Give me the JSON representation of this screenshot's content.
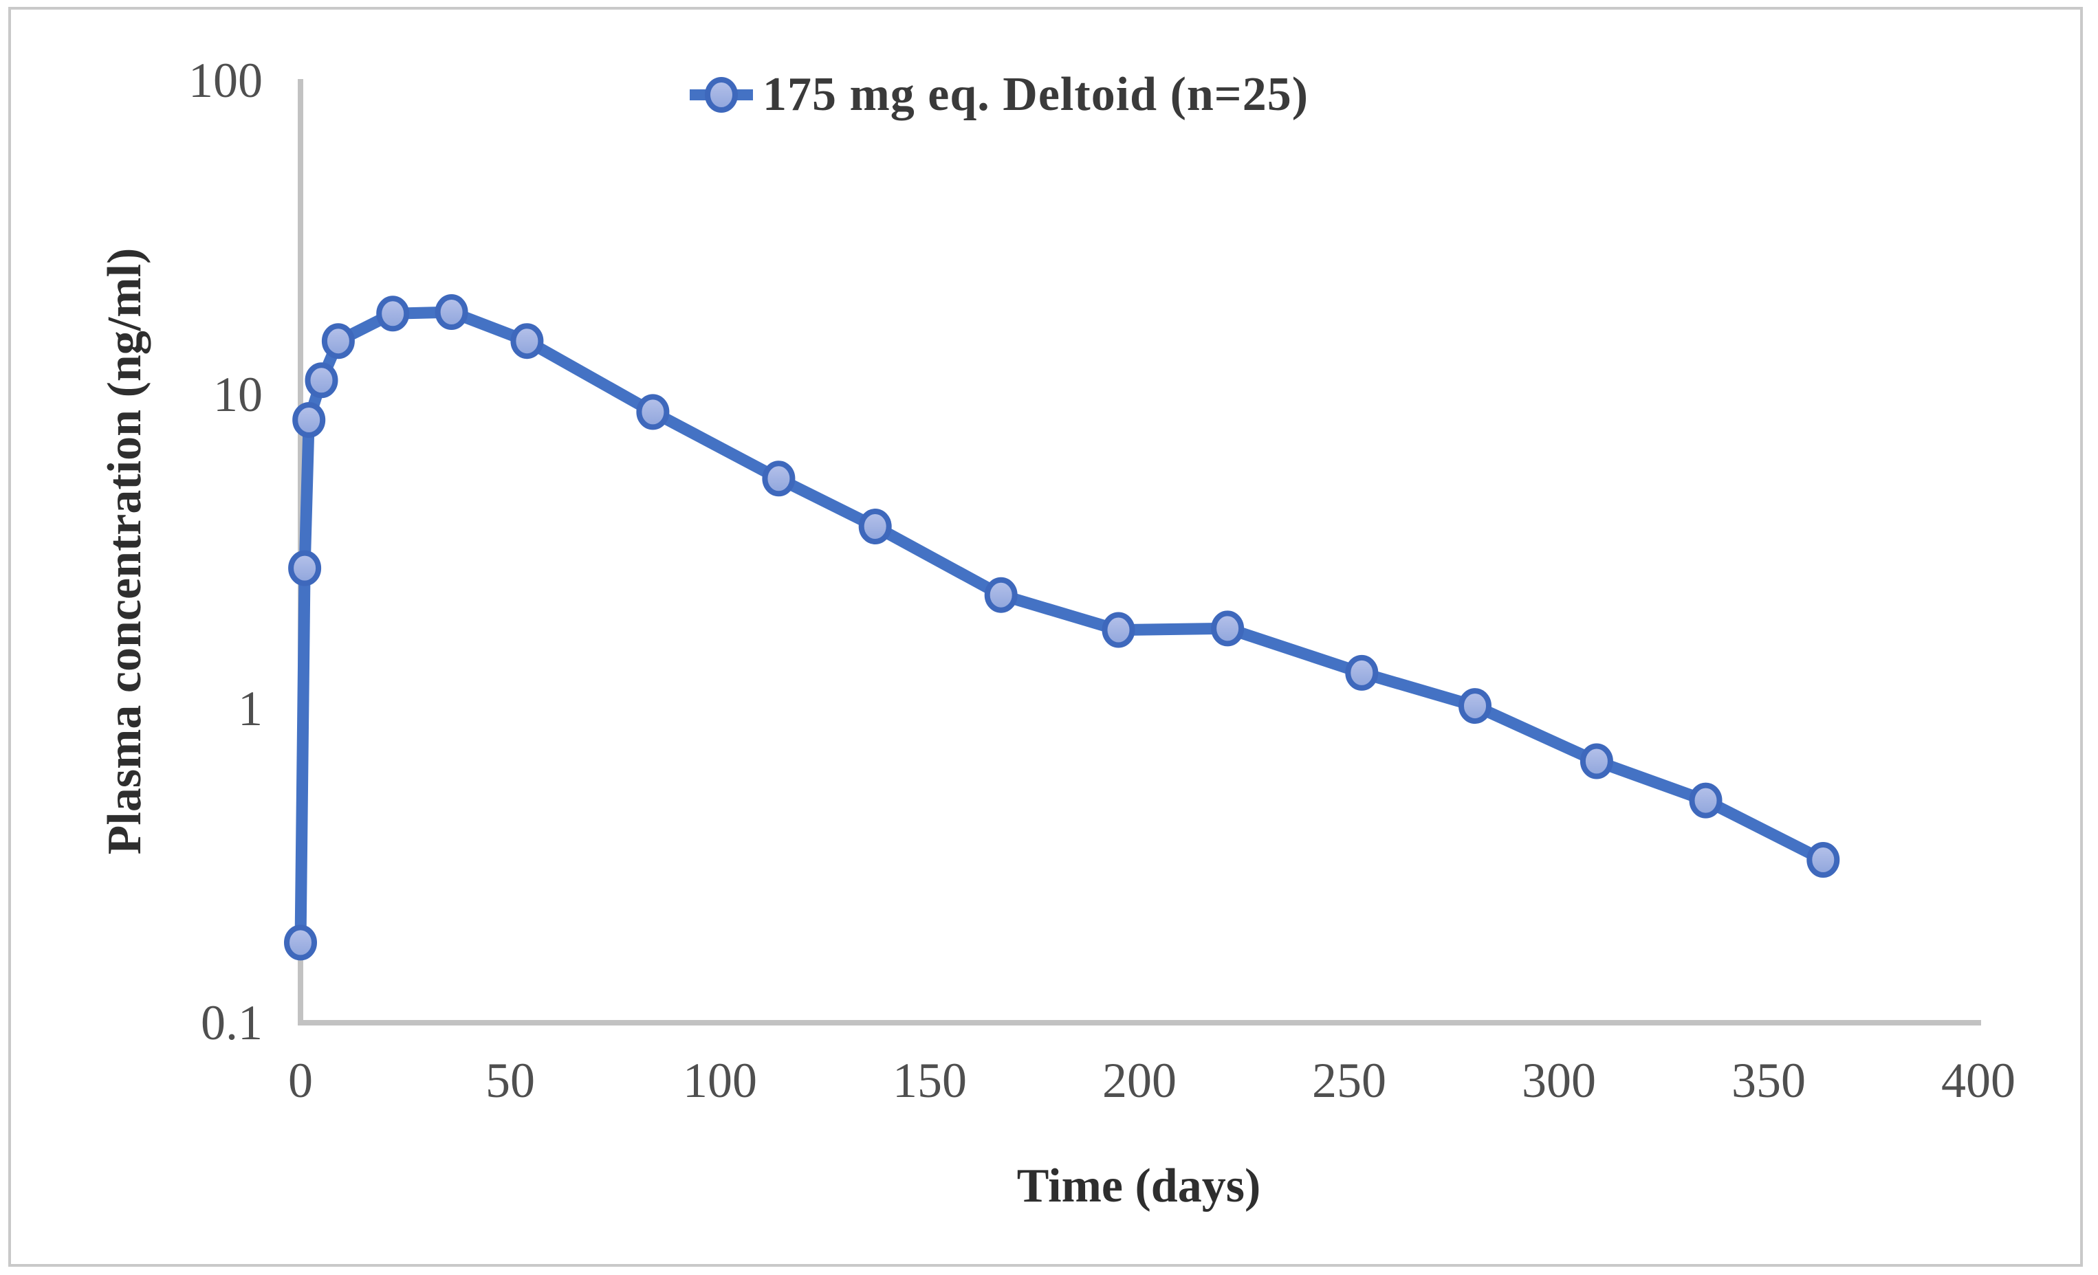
{
  "figure": {
    "background": "#ffffff",
    "border_color": "#c9c9c9"
  },
  "legend": {
    "label": "175 mg eq. Deltoid (n=25)",
    "position": "top-center",
    "line_color": "#4472c4",
    "marker_fill_top": "#b6c2ea",
    "marker_fill_bottom": "#8fa5dc",
    "marker_border": "#3e68bc"
  },
  "chart_data": {
    "type": "line",
    "title": "",
    "xlabel": "Time (days)",
    "ylabel": "Plasma concentration (ng/ml)",
    "x_axis": {
      "scale": "linear",
      "min": 0,
      "max": 400,
      "ticks": [
        0,
        50,
        100,
        150,
        200,
        250,
        300,
        350,
        400
      ]
    },
    "y_axis": {
      "scale": "log",
      "min": 0.1,
      "max": 100,
      "ticks": [
        100,
        10,
        1,
        0.1
      ],
      "tick_labels": [
        "100",
        "10",
        "1",
        "0.1"
      ]
    },
    "grid": false,
    "legend_position": "top-center",
    "series": [
      {
        "name": "175 mg eq. Deltoid (n=25)",
        "color": "#4472c4",
        "x": [
          0,
          1,
          2,
          5,
          9,
          22,
          36,
          54,
          84,
          114,
          137,
          167,
          195,
          221,
          253,
          280,
          309,
          335,
          363
        ],
        "y": [
          0.18,
          2.8,
          8.3,
          11.1,
          14.8,
          18.1,
          18.3,
          14.8,
          8.8,
          5.4,
          3.8,
          2.3,
          1.78,
          1.8,
          1.3,
          1.02,
          0.68,
          0.51,
          0.33
        ]
      }
    ],
    "style": {
      "axis_line_color": "#c2c2c2",
      "tick_label_color": "#4f4f4f",
      "tick_font_size": 72,
      "line_width": 17,
      "marker_rx": 20,
      "marker_ry": 22
    }
  }
}
